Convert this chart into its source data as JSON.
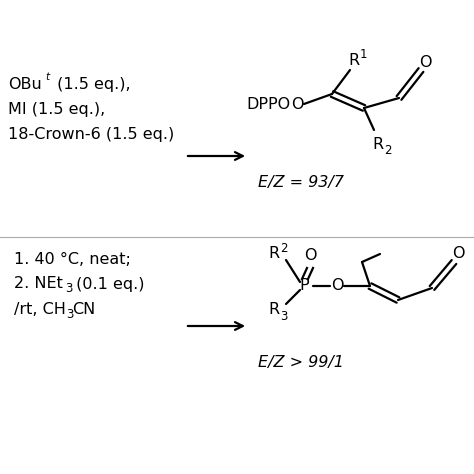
{
  "bg_color": "#ffffff",
  "text_color": "#000000",
  "line_color": "#000000",
  "top_cond_line1_a": "OBu",
  "top_cond_line1_b": "t",
  "top_cond_line1_c": " (1.5 eq.),",
  "top_cond_line2": "MI (1.5 eq.),",
  "top_cond_line3": "18-Crown-6 (1.5 eq.)",
  "top_ez": "E/Z = 93/7",
  "bot_cond_line1": "1. 40 °C, neat;",
  "bot_cond_line2a": "2. NEt",
  "bot_cond_line2b": "3",
  "bot_cond_line2c": " (0.1 eq.)",
  "bot_cond_line3a": "/rt, CH",
  "bot_cond_line3b": "3",
  "bot_cond_line3c": "CN",
  "bot_ez": "E/Z > 99/1",
  "fs_main": 11.5,
  "fs_sub": 8.5,
  "lw": 1.6
}
